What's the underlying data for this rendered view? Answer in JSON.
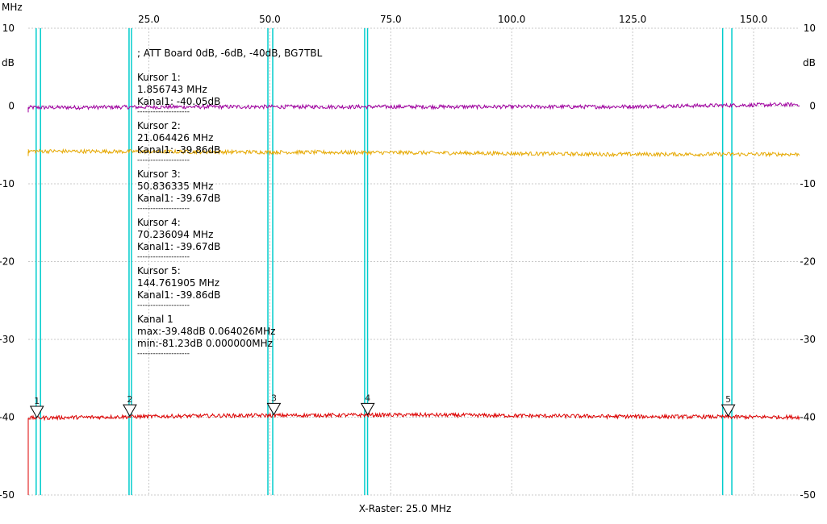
{
  "chart_data": {
    "type": "line",
    "title": "; ATT Board 0dB, -6dB, -40dB, BG7TBL",
    "x_unit": "MHz",
    "y_unit": "dB",
    "xlabel": "X-Raster: 25.0 MHz",
    "xlim": [
      0.064026,
      159.5
    ],
    "ylim": [
      -50,
      10
    ],
    "x_ticks": [
      "25.0",
      "50.0",
      "75.0",
      "100.0",
      "125.0",
      "150.0"
    ],
    "x_tick_values": [
      25,
      50,
      75,
      100,
      125,
      150
    ],
    "y_ticks": [
      "10",
      "0",
      "-10",
      "-20",
      "-30",
      "-40",
      "-50"
    ],
    "y_tick_values": [
      10,
      0,
      -10,
      -20,
      -30,
      -40,
      -50
    ],
    "grid": true,
    "series": [
      {
        "color": "#a000a0",
        "x": [
          0.064,
          40,
          80,
          120,
          159.5
        ],
        "values": [
          -0.2,
          -0.1,
          -0.1,
          -0.1,
          0.2
        ]
      },
      {
        "color": "#e6a800",
        "x": [
          0.064,
          40,
          80,
          120,
          159.5
        ],
        "values": [
          -5.8,
          -5.9,
          -6.0,
          -6.2,
          -6.2
        ]
      },
      {
        "color": "#dd0000",
        "x": [
          0.064,
          40,
          80,
          120,
          159.5
        ],
        "values": [
          -40.1,
          -39.8,
          -39.7,
          -39.9,
          -40.0
        ]
      }
    ],
    "cursor_lines_mhz": [
      1.7,
      2.6,
      20.9,
      21.4,
      49.6,
      50.6,
      69.6,
      70.2,
      143.6,
      145.5
    ],
    "cursor_color": "#00cccc",
    "markers": [
      {
        "label": "1",
        "x": 1.856743,
        "y": -40.05
      },
      {
        "label": "2",
        "x": 21.064426,
        "y": -39.86
      },
      {
        "label": "3",
        "x": 50.836335,
        "y": -39.67
      },
      {
        "label": "4",
        "x": 70.236094,
        "y": -39.67
      },
      {
        "label": "5",
        "x": 144.761905,
        "y": -39.86
      }
    ],
    "annotation_lines": [
      "; ATT Board 0dB, -6dB, -40dB, BG7TBL",
      "",
      "Kursor 1:",
      "1.856743 MHz",
      "Kanal1: -40.05dB",
      "--------------------",
      "Kursor 2:",
      "21.064426 MHz",
      "Kanal1: -39.86dB",
      "--------------------",
      "Kursor 3:",
      "50.836335 MHz",
      "Kanal1: -39.67dB",
      "--------------------",
      "Kursor 4:",
      "70.236094 MHz",
      "Kanal1: -39.67dB",
      "--------------------",
      "Kursor 5:",
      "144.761905 MHz",
      "Kanal1: -39.86dB",
      "--------------------",
      "Kanal 1",
      "max:-39.48dB 0.064026MHz",
      "min:-81.23dB 0.000000MHz",
      "--------------------"
    ]
  }
}
